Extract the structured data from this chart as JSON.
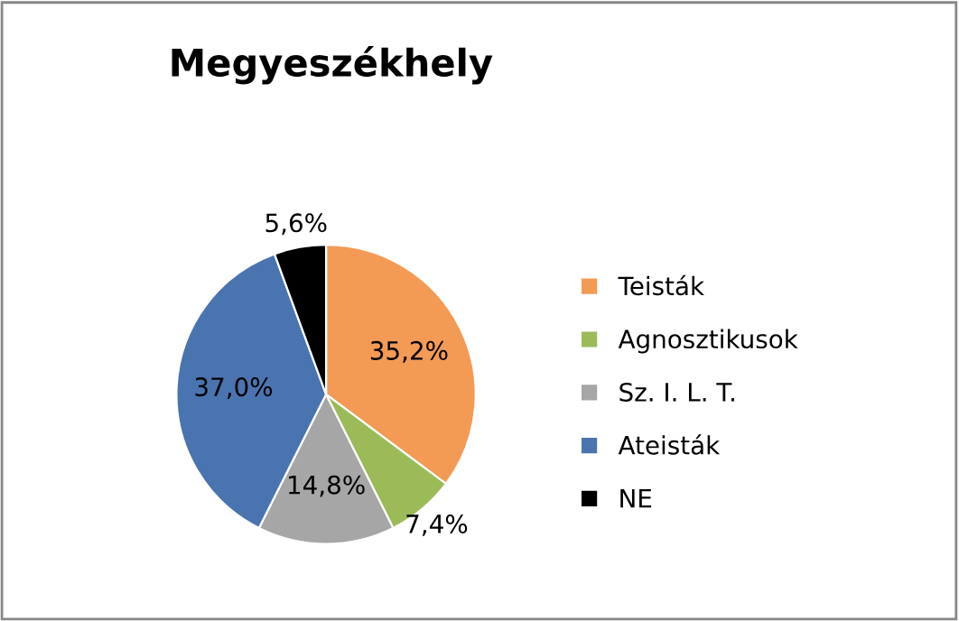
{
  "chart_data": {
    "type": "pie",
    "title": "Megyeszékhely",
    "categories": [
      "Teisták",
      "Agnosztikusok",
      "Sz. I. L. T.",
      "Ateisták",
      "NE"
    ],
    "values": [
      35.2,
      7.4,
      14.8,
      37.0,
      5.6
    ],
    "value_labels": [
      "35,2%",
      "7,4%",
      "14,8%",
      "37,0%",
      "5,6%"
    ],
    "colors": [
      "#f39a55",
      "#9bbb59",
      "#a6a6a6",
      "#4a74b0",
      "#000000"
    ],
    "legend": "right"
  }
}
